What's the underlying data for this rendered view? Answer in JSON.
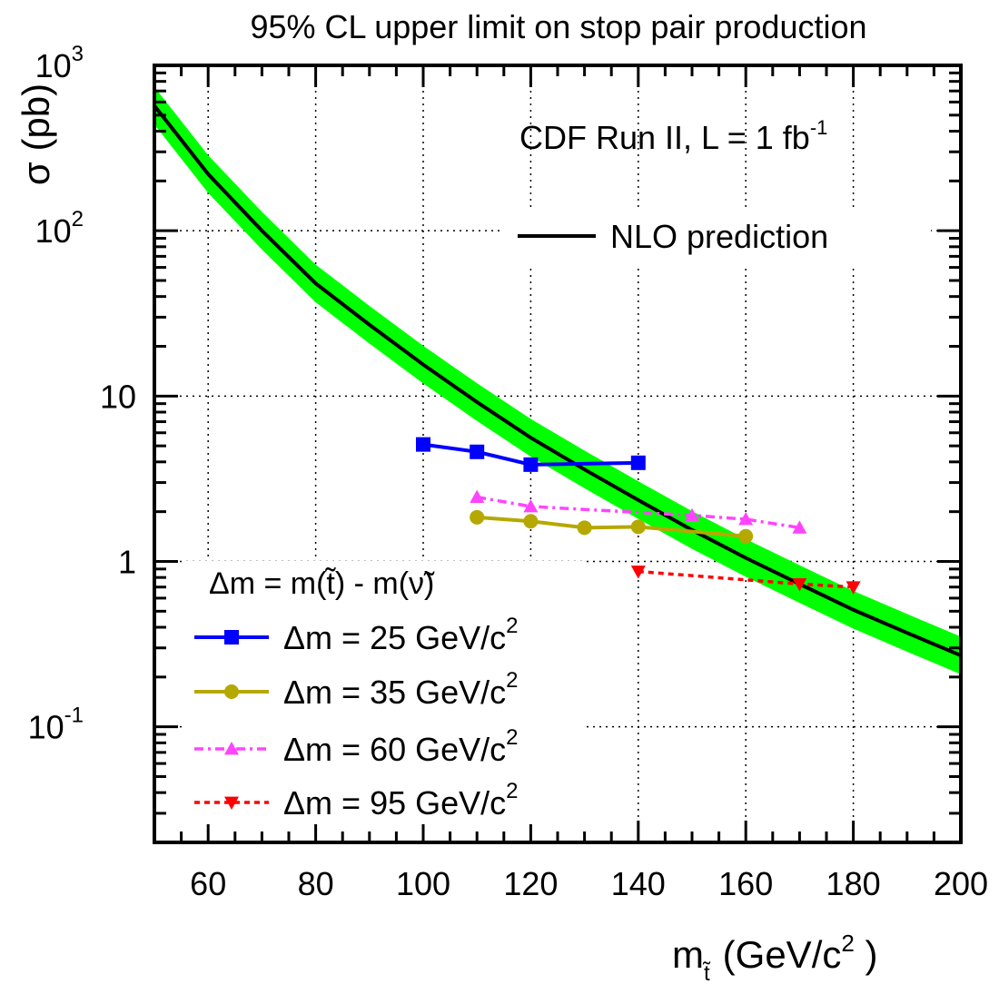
{
  "chart_data": {
    "type": "line",
    "title": "95% CL upper limit on stop pair production",
    "annotation": {
      "text": "CDF Run II, L = 1 fb",
      "sup": "-1"
    },
    "xlabel": {
      "main": "m",
      "sub": "t̃",
      "unit": "(GeV/c",
      "unit_sup": "2",
      "unit_close": " )"
    },
    "ylabel": "σ (pb)",
    "xlim": [
      50,
      200
    ],
    "ylim": [
      0.02,
      1000
    ],
    "yscale": "log",
    "grid": true,
    "x_ticks": [
      60,
      80,
      100,
      120,
      140,
      160,
      180,
      200
    ],
    "y_ticks": [
      {
        "value": 1000,
        "base": "10",
        "exp": "3"
      },
      {
        "value": 100,
        "base": "10",
        "exp": "2"
      },
      {
        "value": 10,
        "base": "10",
        "exp": ""
      },
      {
        "value": 1,
        "base": "1",
        "exp": ""
      },
      {
        "value": 0.1,
        "base": "10",
        "exp": "-1"
      }
    ],
    "prediction": {
      "name": "NLO prediction",
      "color": "#000000",
      "band_color": "#00ff00",
      "x": [
        50,
        60,
        70,
        80,
        90,
        100,
        110,
        120,
        130,
        140,
        150,
        160,
        170,
        180,
        190,
        200
      ],
      "y": [
        570,
        220,
        100,
        48,
        27,
        15.5,
        9.2,
        5.6,
        3.6,
        2.35,
        1.55,
        1.05,
        0.73,
        0.51,
        0.37,
        0.27
      ],
      "band_factor": 1.3
    },
    "legend_header": "Δm = m(t̃) - m(ν̃)",
    "series": [
      {
        "name": "Δm = 25 GeV/c",
        "sup": "2",
        "color": "#0000ff",
        "marker": "square",
        "dash": "",
        "x": [
          100,
          110,
          120,
          140
        ],
        "y": [
          5.1,
          4.6,
          3.85,
          3.95
        ]
      },
      {
        "name": "Δm = 35 GeV/c",
        "sup": "2",
        "color": "#b5a800",
        "marker": "circle",
        "dash": "",
        "x": [
          110,
          120,
          130,
          140,
          160
        ],
        "y": [
          1.85,
          1.75,
          1.6,
          1.62,
          1.42
        ]
      },
      {
        "name": "Δm = 60 GeV/c",
        "sup": "2",
        "color": "#ff44ff",
        "marker": "triangle-up",
        "dash": "10,5,3,5",
        "x": [
          110,
          120,
          150,
          160,
          170
        ],
        "y": [
          2.45,
          2.15,
          1.9,
          1.8,
          1.6
        ]
      },
      {
        "name": "Δm = 95 GeV/c",
        "sup": "2",
        "color": "#ff0000",
        "marker": "triangle-down",
        "dash": "6,5",
        "x": [
          140,
          170,
          180
        ],
        "y": [
          0.87,
          0.73,
          0.7
        ]
      }
    ]
  }
}
